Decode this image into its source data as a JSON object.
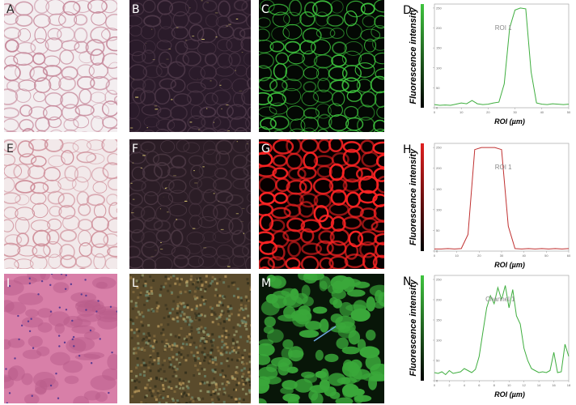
{
  "images": [
    {
      "label": "A"
    },
    {
      "label": "B"
    },
    {
      "label": "C"
    },
    {
      "label": "E"
    },
    {
      "label": "F"
    },
    {
      "label": "G"
    },
    {
      "label": "I"
    },
    {
      "label": "L"
    },
    {
      "label": "M"
    }
  ],
  "chart_data": [
    {
      "type": "line",
      "label": "D",
      "y_label": "Fluorescence intensity",
      "x_label": "ROI (µm)",
      "annotation": "ROI 1",
      "color": "#3fae3f",
      "x": [
        0,
        2,
        4,
        6,
        8,
        10,
        12,
        14,
        16,
        18,
        20,
        22,
        24,
        26,
        28,
        30,
        32,
        34,
        36,
        38,
        40,
        42,
        44,
        46,
        48,
        50
      ],
      "values": [
        8,
        6,
        7,
        6,
        9,
        12,
        10,
        18,
        10,
        8,
        9,
        12,
        14,
        60,
        200,
        245,
        250,
        248,
        90,
        12,
        9,
        8,
        10,
        9,
        8,
        9
      ],
      "xlim": [
        0,
        50
      ],
      "xticks": [
        0,
        10,
        20,
        30,
        40,
        50
      ],
      "ylim": [
        0,
        260
      ],
      "yticks": [
        0,
        50,
        100,
        150,
        200,
        250
      ]
    },
    {
      "type": "line",
      "label": "H",
      "y_label": "Fluorescence intensity",
      "x_label": "ROI (µm)",
      "annotation": "ROI 1",
      "color": "#c03030",
      "x": [
        0,
        3,
        6,
        9,
        12,
        15,
        18,
        21,
        24,
        27,
        30,
        33,
        36,
        39,
        42,
        45,
        48,
        51,
        54,
        57,
        60
      ],
      "values": [
        5,
        5,
        6,
        5,
        6,
        40,
        245,
        250,
        250,
        250,
        245,
        60,
        6,
        5,
        6,
        5,
        6,
        5,
        6,
        5,
        6
      ],
      "xlim": [
        0,
        60
      ],
      "xticks": [
        0,
        10,
        20,
        30,
        40,
        50,
        60
      ],
      "ylim": [
        0,
        260
      ],
      "yticks": [
        0,
        50,
        100,
        150,
        200,
        250
      ]
    },
    {
      "type": "line",
      "label": "N",
      "y_label": "Fluorescence intensity",
      "x_label": "ROI (µm)",
      "annotation": "Channel 1",
      "color": "#3fae3f",
      "x": [
        0,
        0.5,
        1,
        1.5,
        2,
        2.5,
        3,
        3.5,
        4,
        4.5,
        5,
        5.5,
        6,
        6.5,
        7,
        7.5,
        8,
        8.5,
        9,
        9.5,
        10,
        10.5,
        11,
        11.5,
        12,
        12.5,
        13,
        13.5,
        14,
        14.5,
        15,
        15.5,
        16,
        16.5,
        17,
        17.5,
        18
      ],
      "values": [
        20,
        18,
        22,
        15,
        25,
        18,
        20,
        22,
        30,
        25,
        20,
        28,
        60,
        120,
        180,
        210,
        190,
        230,
        200,
        235,
        180,
        225,
        160,
        140,
        80,
        50,
        30,
        25,
        20,
        22,
        20,
        25,
        70,
        20,
        22,
        90,
        60
      ],
      "xlim": [
        0,
        18
      ],
      "xticks": [
        0,
        2,
        4,
        6,
        8,
        10,
        12,
        14,
        16,
        18
      ],
      "ylim": [
        0,
        260
      ],
      "yticks": [
        0,
        50,
        100,
        150,
        200,
        250
      ]
    }
  ]
}
